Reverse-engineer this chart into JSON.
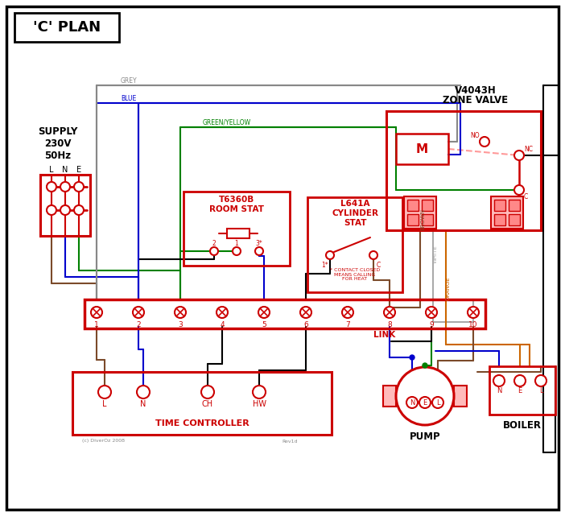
{
  "title": "'C' PLAN",
  "bg_color": "#ffffff",
  "red": "#cc0000",
  "blue": "#0000cc",
  "green": "#008000",
  "grey": "#888888",
  "brown": "#7b4a2a",
  "orange": "#cc6600",
  "black": "#000000",
  "pink": "#ff9999",
  "white_wire": "#aaaaaa",
  "zone_valve_title1": "V4043H",
  "zone_valve_title2": "ZONE VALVE",
  "room_stat_title": "T6360B\nROOM STAT",
  "cylinder_stat_title": "L641A\nCYLINDER\nSTAT",
  "supply_text": "SUPPLY\n230V\n50Hz",
  "time_controller_text": "TIME CONTROLLER",
  "pump_text": "PUMP",
  "boiler_text": "BOILER",
  "link_text": "LINK",
  "copyright": "(c) DiverOz 2008",
  "revision": "Rev1d",
  "terminal_numbers": [
    "1",
    "2",
    "3",
    "4",
    "5",
    "6",
    "7",
    "8",
    "9",
    "10"
  ]
}
